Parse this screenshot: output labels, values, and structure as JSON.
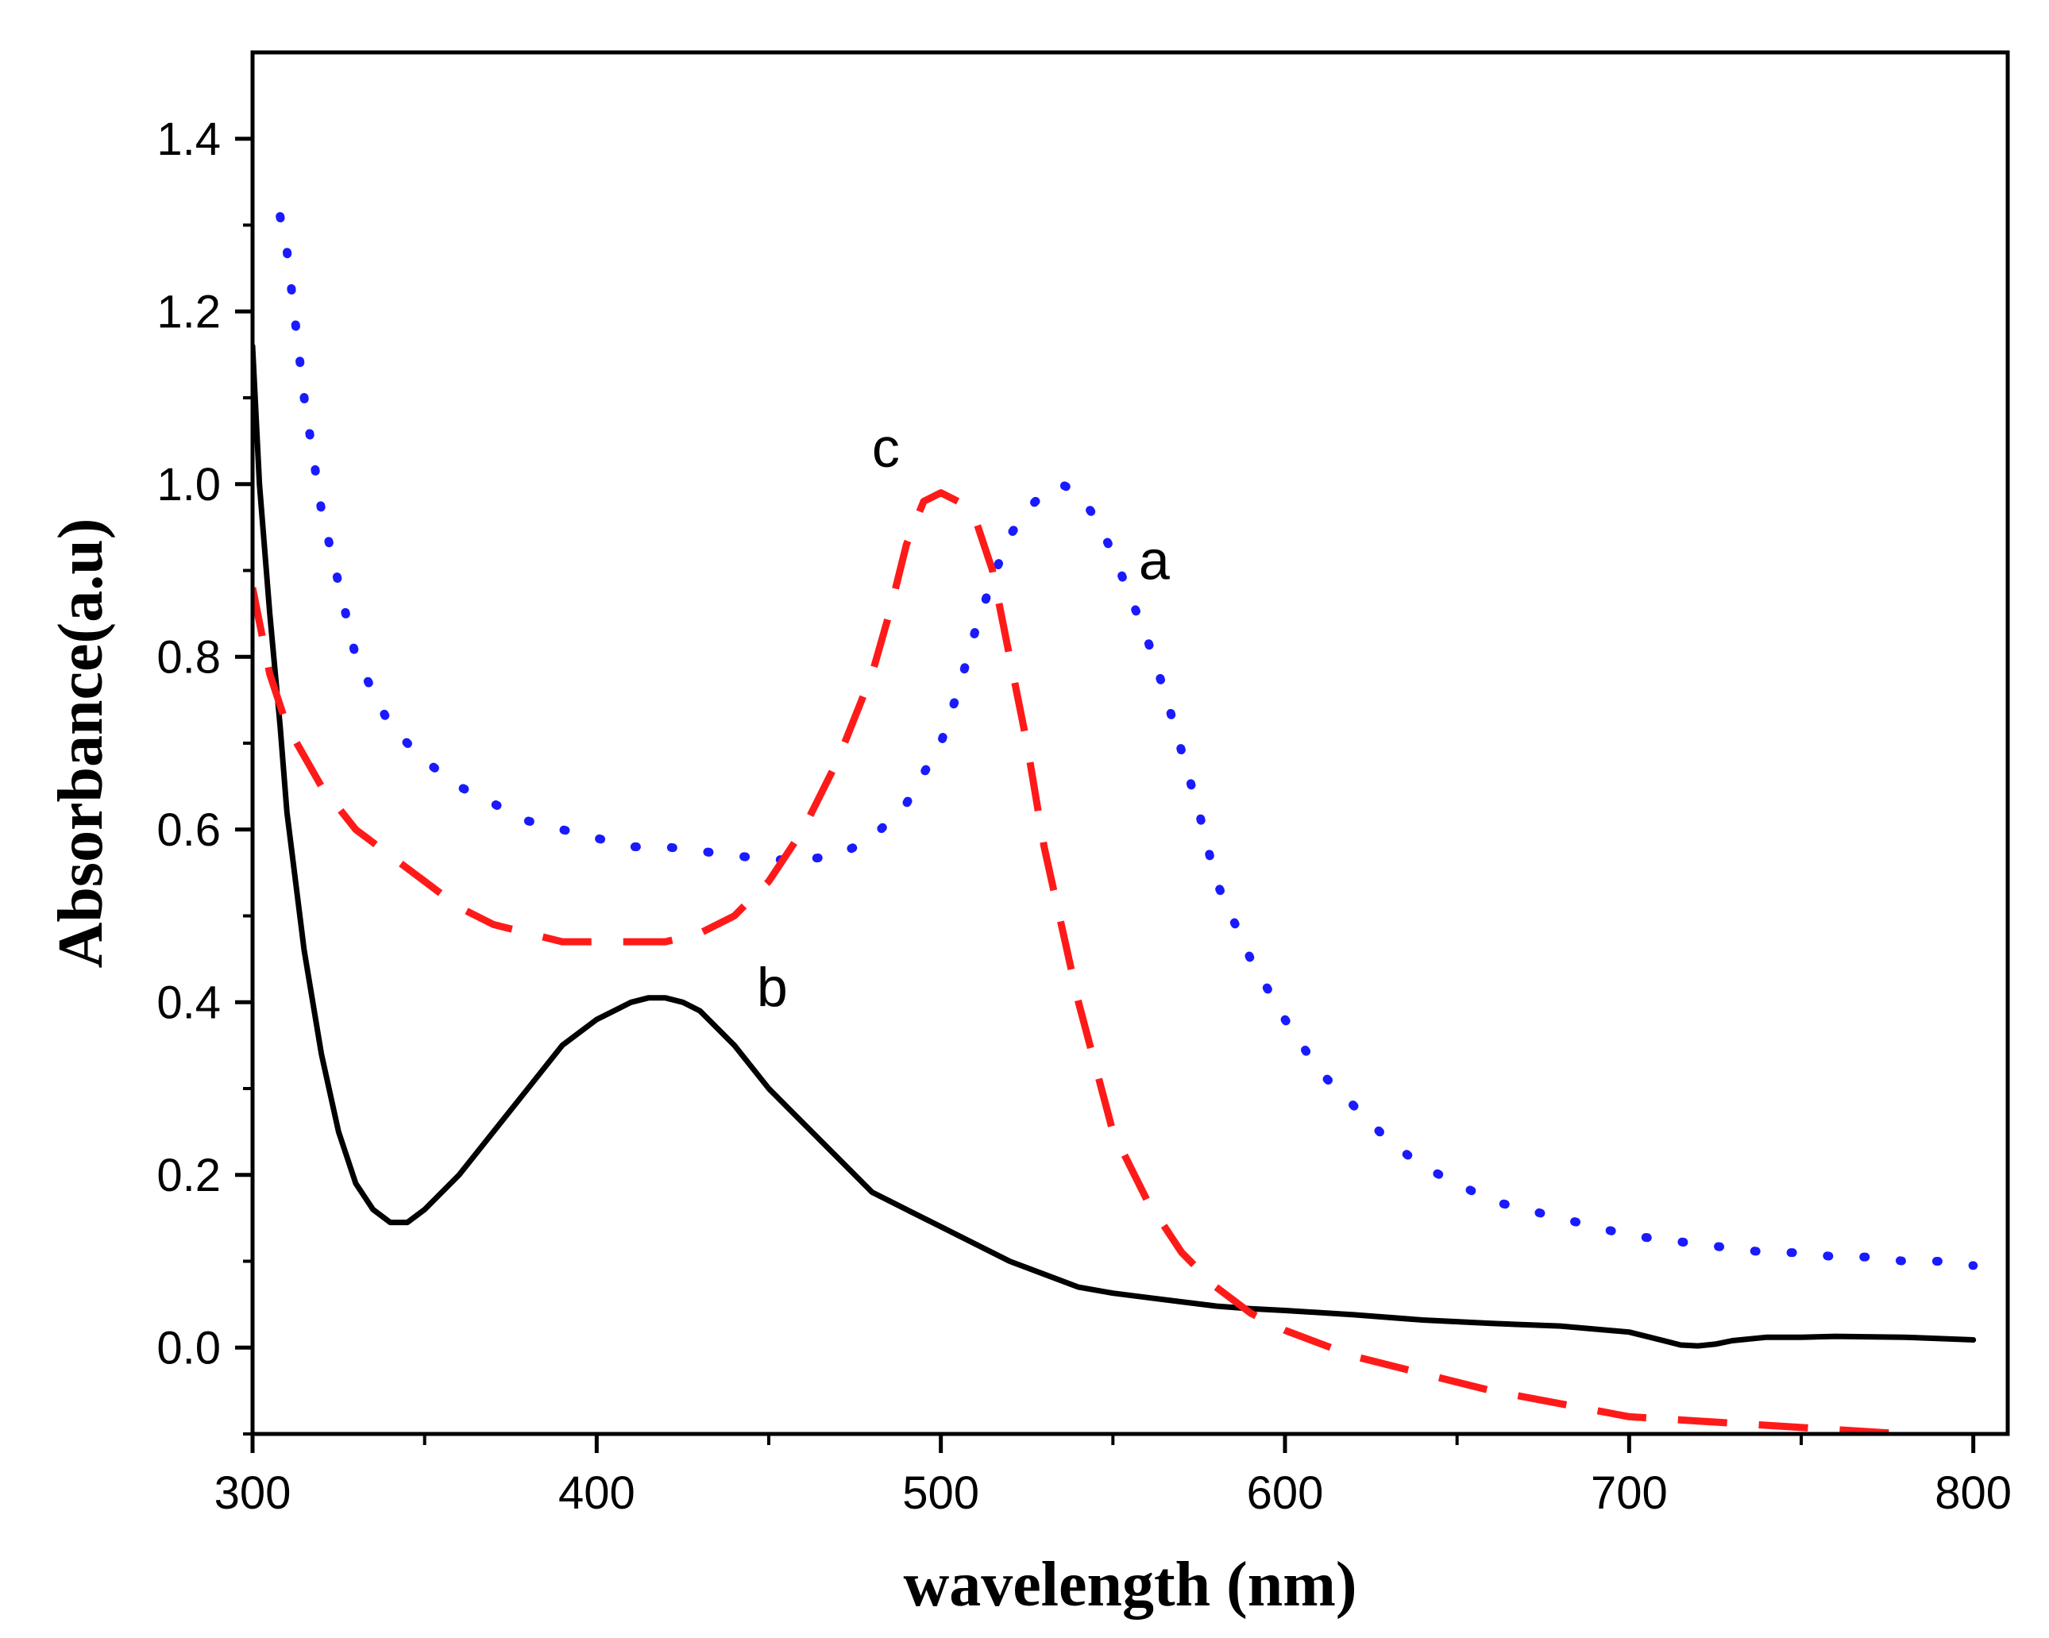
{
  "chart_data": {
    "type": "line",
    "title": "",
    "xlabel": "wavelength (nm)",
    "ylabel": "Absorbance(a.u)",
    "xlim": [
      300,
      810
    ],
    "ylim": [
      -0.1,
      1.5
    ],
    "x_ticks": [
      300,
      400,
      500,
      600,
      700,
      800
    ],
    "x_minor_ticks": [
      350,
      450,
      550,
      650,
      750
    ],
    "y_ticks": [
      0.0,
      0.2,
      0.4,
      0.6,
      0.8,
      1.0,
      1.2,
      1.4
    ],
    "y_tick_labels": [
      "0.0",
      "0.2",
      "0.4",
      "0.6",
      "0.8",
      "1.0",
      "1.2",
      "1.4"
    ],
    "grid": false,
    "series": [
      {
        "name": "a",
        "style": "dotted",
        "color": "#1a1aff",
        "x": [
          308,
          310,
          315,
          320,
          330,
          340,
          350,
          360,
          370,
          380,
          390,
          400,
          410,
          420,
          430,
          440,
          450,
          460,
          470,
          480,
          490,
          500,
          505,
          510,
          515,
          520,
          525,
          530,
          535,
          540,
          545,
          550,
          555,
          560,
          565,
          570,
          575,
          580,
          590,
          600,
          610,
          620,
          630,
          640,
          650,
          660,
          670,
          680,
          690,
          700,
          710,
          720,
          730,
          740,
          750,
          760,
          770,
          780,
          790,
          800
        ],
        "y": [
          1.31,
          1.27,
          1.1,
          0.97,
          0.8,
          0.72,
          0.68,
          0.65,
          0.63,
          0.61,
          0.6,
          0.59,
          0.58,
          0.58,
          0.575,
          0.57,
          0.565,
          0.565,
          0.57,
          0.59,
          0.63,
          0.7,
          0.76,
          0.83,
          0.89,
          0.94,
          0.97,
          0.99,
          1.0,
          0.99,
          0.96,
          0.92,
          0.87,
          0.82,
          0.76,
          0.69,
          0.62,
          0.54,
          0.45,
          0.38,
          0.32,
          0.28,
          0.24,
          0.21,
          0.19,
          0.17,
          0.16,
          0.15,
          0.14,
          0.13,
          0.125,
          0.12,
          0.115,
          0.11,
          0.11,
          0.105,
          0.105,
          0.1,
          0.1,
          0.095
        ]
      },
      {
        "name": "b",
        "style": "solid",
        "color": "#000000",
        "x": [
          300,
          302,
          305,
          308,
          310,
          315,
          320,
          325,
          330,
          335,
          340,
          345,
          350,
          360,
          370,
          380,
          390,
          400,
          410,
          415,
          420,
          425,
          430,
          440,
          450,
          460,
          470,
          480,
          490,
          500,
          510,
          520,
          530,
          540,
          550,
          560,
          570,
          580,
          590,
          600,
          620,
          640,
          660,
          680,
          700,
          710,
          715,
          720,
          725,
          730,
          740,
          750,
          760,
          780,
          800
        ],
        "y": [
          1.16,
          1.0,
          0.85,
          0.72,
          0.62,
          0.46,
          0.34,
          0.25,
          0.19,
          0.16,
          0.145,
          0.145,
          0.16,
          0.2,
          0.25,
          0.3,
          0.35,
          0.38,
          0.4,
          0.405,
          0.405,
          0.4,
          0.39,
          0.35,
          0.3,
          0.26,
          0.22,
          0.18,
          0.16,
          0.14,
          0.12,
          0.1,
          0.085,
          0.07,
          0.063,
          0.058,
          0.053,
          0.048,
          0.045,
          0.043,
          0.038,
          0.032,
          0.028,
          0.025,
          0.018,
          0.008,
          0.003,
          0.002,
          0.004,
          0.008,
          0.012,
          0.012,
          0.013,
          0.012,
          0.009
        ]
      },
      {
        "name": "c",
        "style": "dashed",
        "color": "#ff1a1a",
        "x": [
          300,
          305,
          310,
          320,
          330,
          340,
          350,
          360,
          370,
          380,
          390,
          400,
          410,
          420,
          430,
          440,
          450,
          460,
          470,
          480,
          485,
          490,
          495,
          500,
          505,
          510,
          515,
          520,
          525,
          530,
          540,
          550,
          560,
          570,
          580,
          590,
          600,
          620,
          640,
          660,
          680,
          700,
          720,
          740,
          760,
          780
        ],
        "y": [
          0.88,
          0.78,
          0.72,
          0.65,
          0.6,
          0.57,
          0.54,
          0.51,
          0.49,
          0.48,
          0.47,
          0.47,
          0.47,
          0.47,
          0.48,
          0.5,
          0.54,
          0.6,
          0.68,
          0.78,
          0.85,
          0.93,
          0.98,
          0.99,
          0.98,
          0.96,
          0.9,
          0.8,
          0.7,
          0.58,
          0.4,
          0.25,
          0.17,
          0.11,
          0.07,
          0.04,
          0.02,
          -0.01,
          -0.03,
          -0.05,
          -0.065,
          -0.08,
          -0.085,
          -0.09,
          -0.095,
          -0.1
        ]
      }
    ],
    "annotations": [
      {
        "text": "a",
        "x": 562,
        "y": 0.89
      },
      {
        "text": "b",
        "x": 451,
        "y": 0.395
      },
      {
        "text": "c",
        "x": 484,
        "y": 1.02
      }
    ]
  }
}
